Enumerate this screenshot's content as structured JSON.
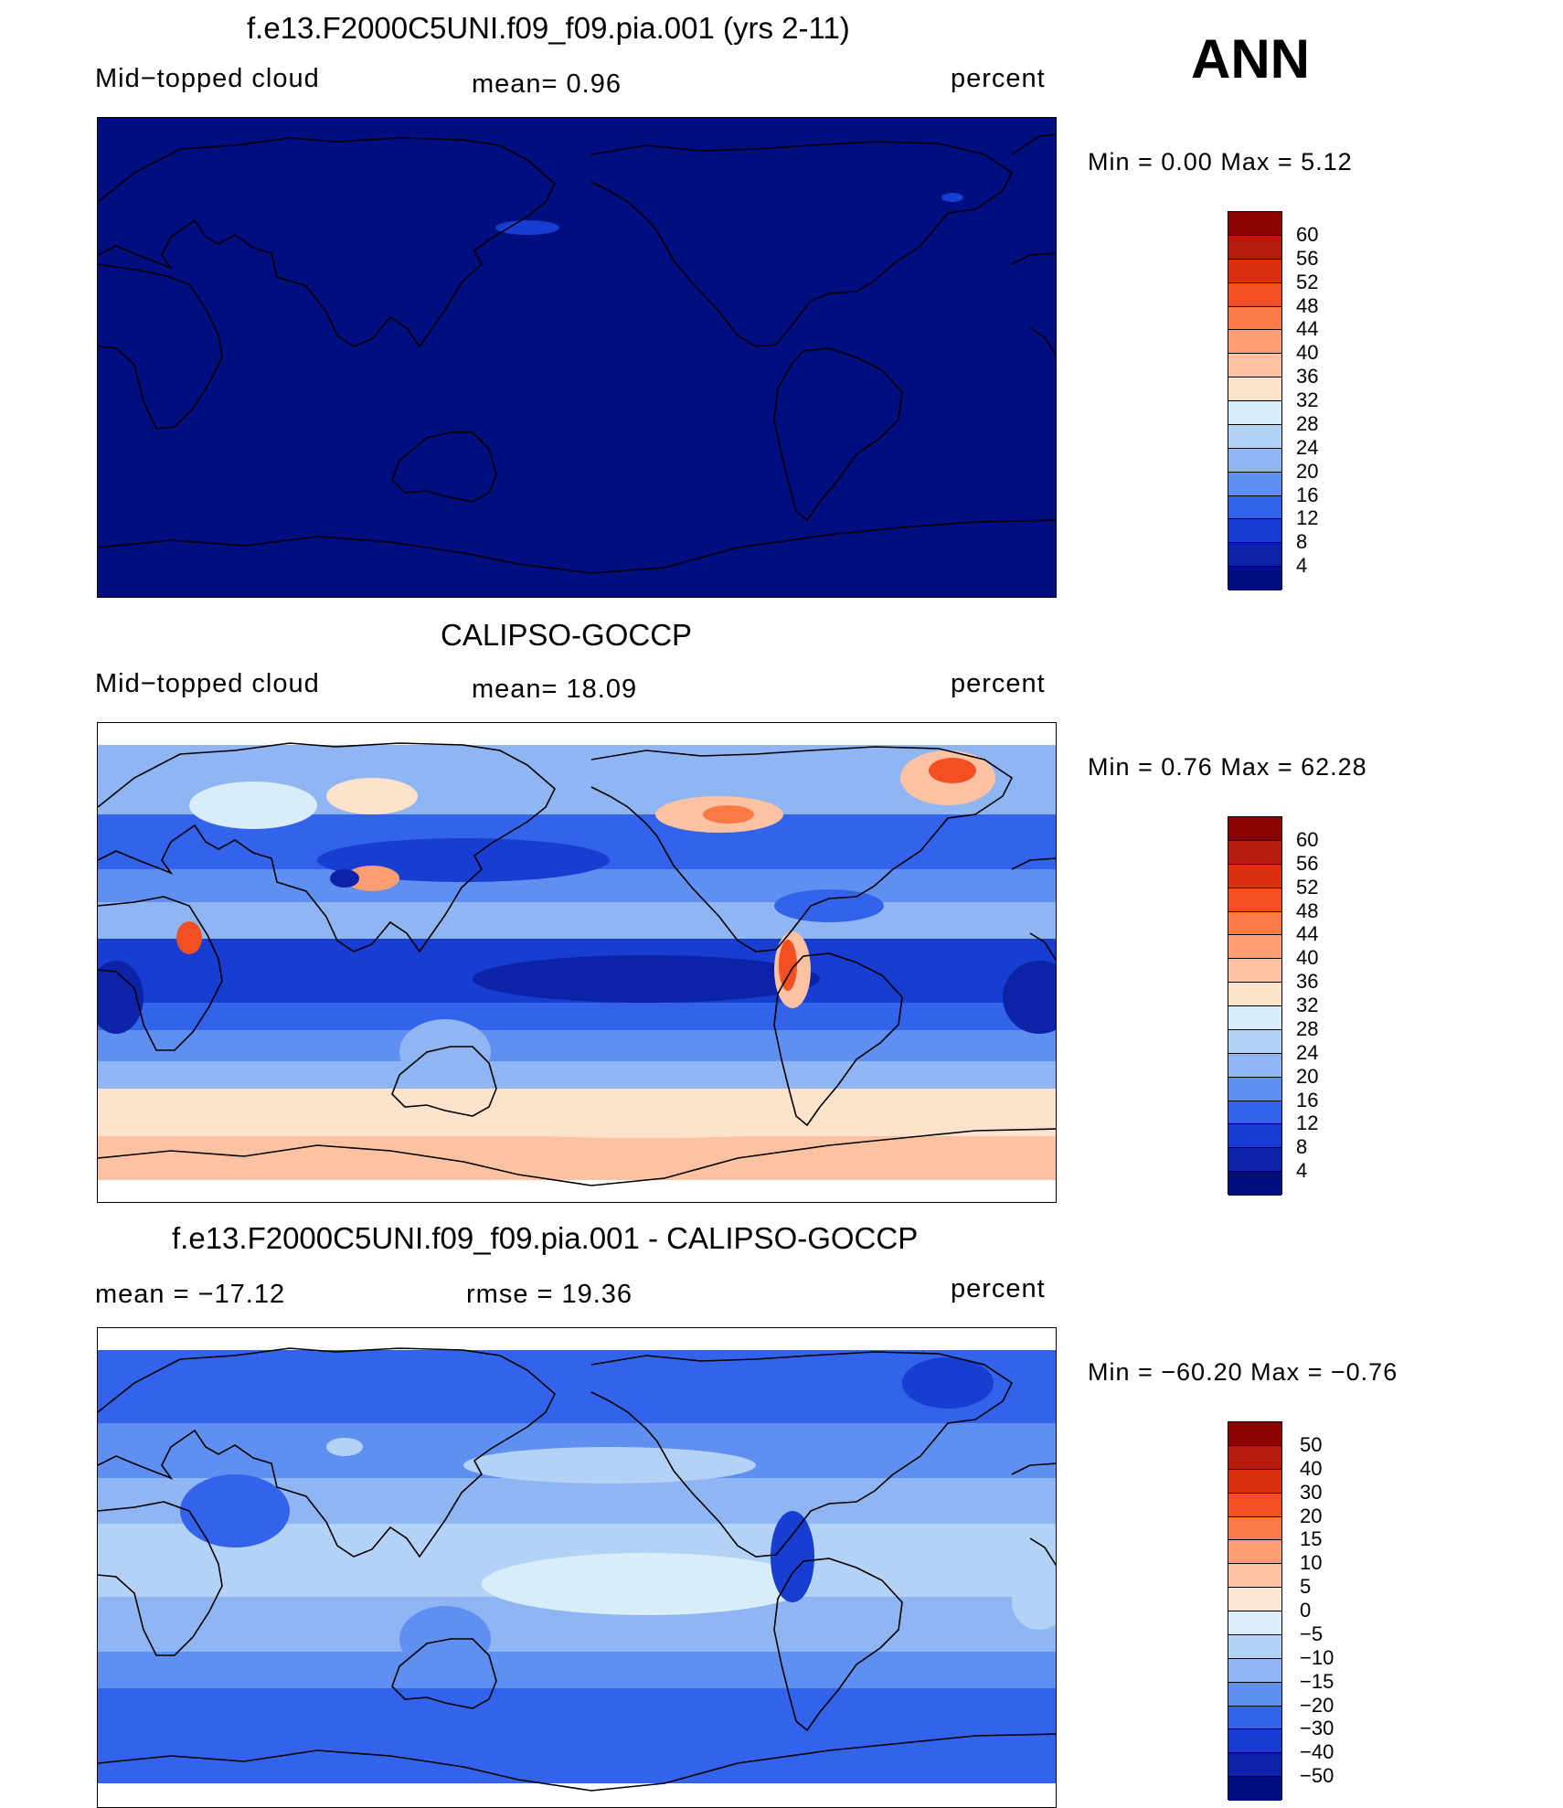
{
  "season": "ANN",
  "panels": [
    {
      "title": "f.e13.F2000C5UNI.f09_f09.pia.001 (yrs 2-11)",
      "left_label": "Mid−topped  cloud",
      "center_label": "mean=    0.96",
      "right_label": "percent",
      "minmax": "Min  =      0.00  Max  =      5.12",
      "colorbar_labels": [
        "60",
        "56",
        "52",
        "48",
        "44",
        "40",
        "36",
        "32",
        "28",
        "24",
        "20",
        "16",
        "12",
        "8",
        "4"
      ]
    },
    {
      "title": "CALIPSO-GOCCP",
      "left_label": "Mid−topped  cloud",
      "center_label": "mean=   18.09",
      "right_label": "percent",
      "minmax": "Min  =      0.76  Max  =    62.28",
      "colorbar_labels": [
        "60",
        "56",
        "52",
        "48",
        "44",
        "40",
        "36",
        "32",
        "28",
        "24",
        "20",
        "16",
        "12",
        "8",
        "4"
      ]
    },
    {
      "title": "f.e13.F2000C5UNI.f09_f09.pia.001 - CALIPSO-GOCCP",
      "left_label": "mean  =  −17.12",
      "center_label": "rmse  =    19.36",
      "right_label": "percent",
      "minmax": "Min  =  −60.20  Max  =    −0.76",
      "colorbar_labels": [
        "50",
        "40",
        "30",
        "20",
        "15",
        "10",
        "5",
        "0",
        "−5",
        "−10",
        "−15",
        "−20",
        "−30",
        "−40",
        "−50"
      ]
    }
  ],
  "colors": {
    "cloud_palette": [
      "#8b0000",
      "#b51a0a",
      "#d9300f",
      "#f24f22",
      "#fa7a46",
      "#fc9d73",
      "#fdc2a2",
      "#fde2cc",
      "#d8ecfa",
      "#b4d2f5",
      "#8fb6f2",
      "#5f8ff0",
      "#3363ea",
      "#173dd1",
      "#0c23a8",
      "#000e80"
    ],
    "diff_palette": [
      "#8b0000",
      "#b51a0a",
      "#d9300f",
      "#f24f22",
      "#fa7a46",
      "#fc9d73",
      "#fdc2a2",
      "#fde7d5",
      "#dcecfb",
      "#b4d2f5",
      "#8fb6f2",
      "#5f8ff0",
      "#3363ea",
      "#173dd1",
      "#0c23a8",
      "#000e80"
    ]
  },
  "chart_data": [
    {
      "type": "heatmap",
      "map": "global cylindrical equidistant, Pacific-centred",
      "variable": "Mid-topped cloud",
      "units": "percent",
      "mean": 0.96,
      "min": 0.0,
      "max": 5.12,
      "contour_levels": [
        4,
        8,
        12,
        16,
        20,
        24,
        28,
        32,
        36,
        40,
        44,
        48,
        52,
        56,
        60
      ]
    },
    {
      "type": "heatmap",
      "map": "global cylindrical equidistant, Pacific-centred",
      "variable": "Mid-topped cloud",
      "units": "percent",
      "mean": 18.09,
      "min": 0.76,
      "max": 62.28,
      "contour_levels": [
        4,
        8,
        12,
        16,
        20,
        24,
        28,
        32,
        36,
        40,
        44,
        48,
        52,
        56,
        60
      ]
    },
    {
      "type": "heatmap",
      "map": "global cylindrical equidistant, Pacific-centred",
      "units": "percent",
      "mean": -17.12,
      "rmse": 19.36,
      "min": -60.2,
      "max": -0.76,
      "contour_levels": [
        -50,
        -40,
        -30,
        -20,
        -15,
        -10,
        -5,
        0,
        5,
        10,
        15,
        20,
        30,
        40,
        50
      ]
    }
  ]
}
